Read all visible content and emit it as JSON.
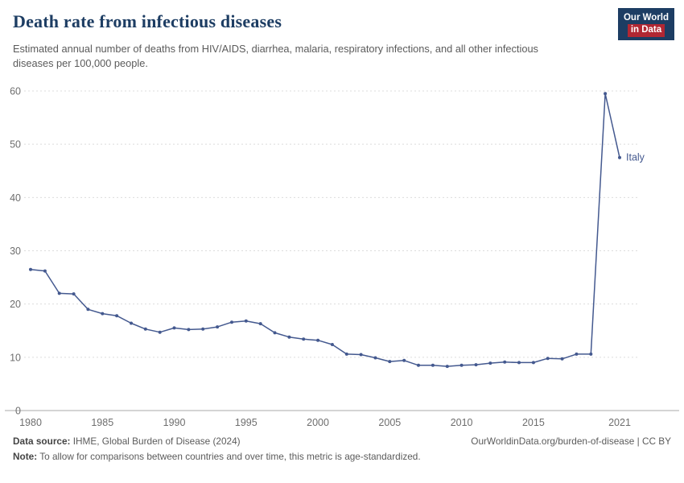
{
  "header": {
    "title": "Death rate from infectious diseases",
    "subtitle": "Estimated annual number of deaths from HIV/AIDS, diarrhea, malaria, respiratory infections, and all other infectious diseases per 100,000 people.",
    "logo": {
      "line1": "Our World",
      "line2": "in Data"
    }
  },
  "colors": {
    "navy": "#1d3d63",
    "red": "#b12733",
    "line": "#44598f"
  },
  "chart_data": {
    "type": "line",
    "title": "Death rate from infectious diseases",
    "xlabel": "",
    "ylabel": "",
    "ylim": [
      0,
      60
    ],
    "grid": true,
    "legend_position": "end-of-line-label",
    "line_color": "#44598f",
    "yticks": [
      0,
      10,
      20,
      30,
      40,
      50,
      60
    ],
    "xticks": [
      1980,
      1985,
      1990,
      1995,
      2000,
      2005,
      2010,
      2015,
      2021
    ],
    "x": [
      1980,
      1981,
      1982,
      1983,
      1984,
      1985,
      1986,
      1987,
      1988,
      1989,
      1990,
      1991,
      1992,
      1993,
      1994,
      1995,
      1996,
      1997,
      1998,
      1999,
      2000,
      2001,
      2002,
      2003,
      2004,
      2005,
      2006,
      2007,
      2008,
      2009,
      2010,
      2011,
      2012,
      2013,
      2014,
      2015,
      2016,
      2017,
      2018,
      2019,
      2020,
      2021
    ],
    "series": [
      {
        "name": "Italy",
        "values": [
          26.5,
          26.2,
          22.0,
          21.9,
          19.0,
          18.2,
          17.8,
          16.4,
          15.3,
          14.7,
          15.5,
          15.2,
          15.3,
          15.7,
          16.6,
          16.8,
          16.3,
          14.6,
          13.8,
          13.4,
          13.2,
          12.4,
          10.6,
          10.5,
          9.9,
          9.2,
          9.4,
          8.5,
          8.5,
          8.3,
          8.5,
          8.6,
          8.9,
          9.1,
          9.0,
          9.0,
          9.8,
          9.7,
          10.6,
          10.6,
          59.5,
          47.5
        ]
      }
    ]
  },
  "footer": {
    "source_label": "Data source:",
    "source_text": " IHME, Global Burden of Disease (2024)",
    "link_text": "OurWorldinData.org/burden-of-disease | CC BY",
    "note_label": "Note:",
    "note_text": " To allow for comparisons between countries and over time, this metric is age-standardized."
  }
}
